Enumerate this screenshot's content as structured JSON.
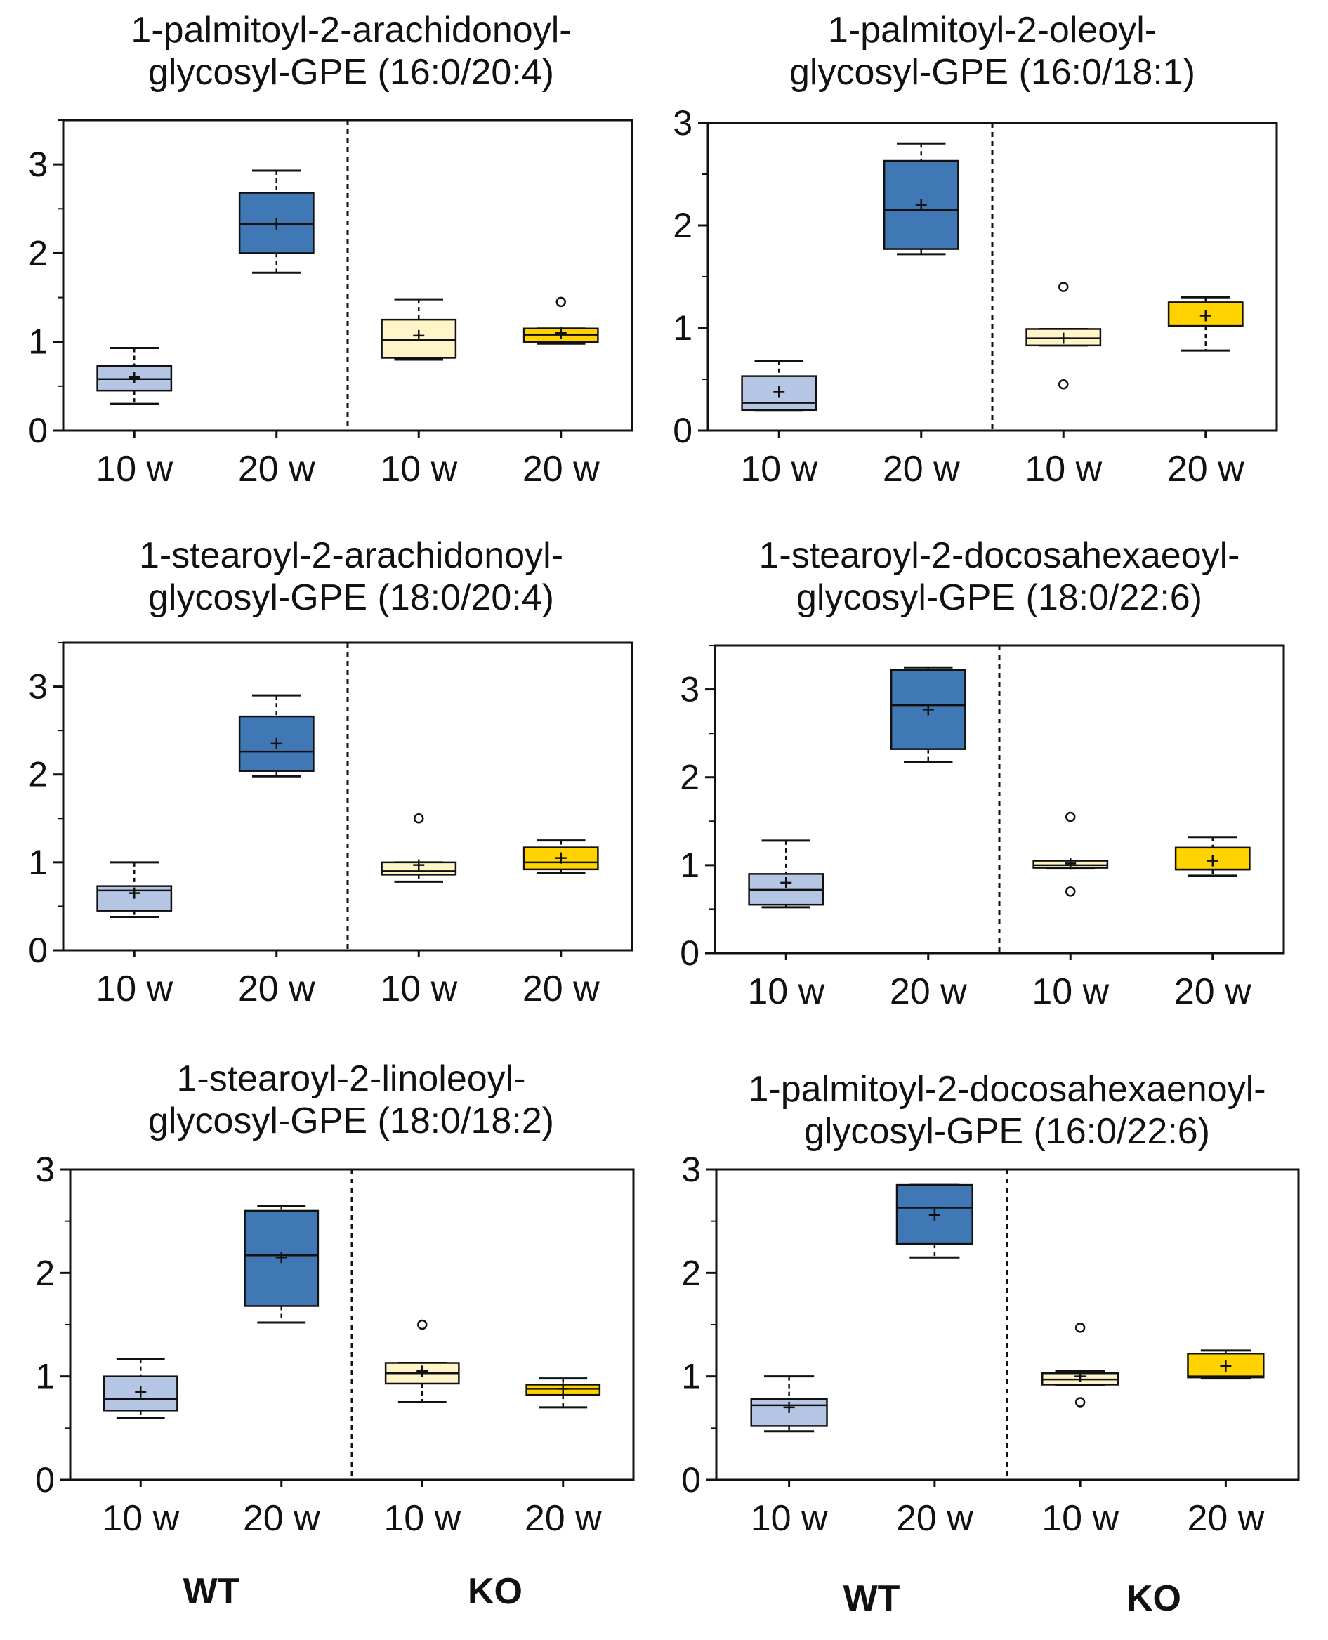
{
  "colors": {
    "wt_10w": "#b4c6e4",
    "wt_20w": "#3f78b4",
    "ko_10w": "#fff5c8",
    "ko_20w": "#ffd200"
  },
  "group_labels": {
    "wt": "WT",
    "ko": "KO"
  },
  "chart_data": [
    {
      "type": "box",
      "title_line1": "1-palmitoyl-2-arachidonoyl-",
      "title_line2": "glycosyl-GPE (16:0/20:4)",
      "categories": [
        "10 w",
        "20 w",
        "10 w",
        "20 w"
      ],
      "groups": [
        "WT",
        "WT",
        "KO",
        "KO"
      ],
      "ylim": [
        0,
        3.5
      ],
      "yticks": [
        0,
        1,
        2,
        3
      ],
      "minor_yticks": [
        0.5,
        1.5,
        2.5,
        3.5
      ],
      "boxes": [
        {
          "min": 0.3,
          "q1": 0.45,
          "median": 0.58,
          "q3": 0.73,
          "max": 0.93,
          "mean": 0.6,
          "outliers": []
        },
        {
          "min": 1.78,
          "q1": 2.0,
          "median": 2.33,
          "q3": 2.68,
          "max": 2.93,
          "mean": 2.33,
          "outliers": []
        },
        {
          "min": 0.8,
          "q1": 0.82,
          "median": 1.02,
          "q3": 1.25,
          "max": 1.48,
          "mean": 1.07,
          "outliers": []
        },
        {
          "min": 0.98,
          "q1": 1.0,
          "median": 1.08,
          "q3": 1.15,
          "max": 1.15,
          "mean": 1.1,
          "outliers": [
            1.45
          ]
        }
      ]
    },
    {
      "type": "box",
      "title_line1": "1-palmitoyl-2-oleoyl-",
      "title_line2": "glycosyl-GPE (16:0/18:1)",
      "categories": [
        "10 w",
        "20 w",
        "10 w",
        "20 w"
      ],
      "groups": [
        "WT",
        "WT",
        "KO",
        "KO"
      ],
      "ylim": [
        0,
        3
      ],
      "yticks": [
        0,
        1,
        2,
        3
      ],
      "minor_yticks": [
        0.5,
        1.5,
        2.5
      ],
      "boxes": [
        {
          "min": 0.2,
          "q1": 0.2,
          "median": 0.27,
          "q3": 0.53,
          "max": 0.68,
          "mean": 0.38,
          "outliers": []
        },
        {
          "min": 1.72,
          "q1": 1.77,
          "median": 2.15,
          "q3": 2.63,
          "max": 2.8,
          "mean": 2.2,
          "outliers": []
        },
        {
          "min": 0.83,
          "q1": 0.83,
          "median": 0.9,
          "q3": 0.99,
          "max": 0.99,
          "mean": 0.9,
          "outliers": [
            1.4,
            0.45
          ]
        },
        {
          "min": 0.78,
          "q1": 1.02,
          "median": 1.25,
          "q3": 1.25,
          "max": 1.3,
          "mean": 1.12,
          "outliers": []
        }
      ]
    },
    {
      "type": "box",
      "title_line1": "1-stearoyl-2-arachidonoyl-",
      "title_line2": "glycosyl-GPE (18:0/20:4)",
      "categories": [
        "10 w",
        "20 w",
        "10 w",
        "20 w"
      ],
      "groups": [
        "WT",
        "WT",
        "KO",
        "KO"
      ],
      "ylim": [
        0,
        3.5
      ],
      "yticks": [
        0,
        1,
        2,
        3
      ],
      "minor_yticks": [
        0.5,
        1.5,
        2.5,
        3.5
      ],
      "boxes": [
        {
          "min": 0.38,
          "q1": 0.45,
          "median": 0.68,
          "q3": 0.73,
          "max": 1.0,
          "mean": 0.65,
          "outliers": []
        },
        {
          "min": 1.98,
          "q1": 2.04,
          "median": 2.26,
          "q3": 2.66,
          "max": 2.9,
          "mean": 2.35,
          "outliers": []
        },
        {
          "min": 0.78,
          "q1": 0.86,
          "median": 0.9,
          "q3": 1.0,
          "max": 1.0,
          "mean": 0.97,
          "outliers": [
            1.5
          ]
        },
        {
          "min": 0.88,
          "q1": 0.92,
          "median": 1.0,
          "q3": 1.17,
          "max": 1.25,
          "mean": 1.05,
          "outliers": []
        }
      ]
    },
    {
      "type": "box",
      "title_line1": "1-stearoyl-2-docosahexaeoyl-",
      "title_line2": "glycosyl-GPE (18:0/22:6)",
      "categories": [
        "10 w",
        "20 w",
        "10 w",
        "20 w"
      ],
      "groups": [
        "WT",
        "WT",
        "KO",
        "KO"
      ],
      "ylim": [
        0,
        3.5
      ],
      "yticks": [
        0,
        1,
        2,
        3
      ],
      "minor_yticks": [
        0.5,
        1.5,
        2.5,
        3.5
      ],
      "boxes": [
        {
          "min": 0.52,
          "q1": 0.55,
          "median": 0.72,
          "q3": 0.9,
          "max": 1.28,
          "mean": 0.8,
          "outliers": []
        },
        {
          "min": 2.17,
          "q1": 2.32,
          "median": 2.82,
          "q3": 3.22,
          "max": 3.25,
          "mean": 2.77,
          "outliers": []
        },
        {
          "min": 0.97,
          "q1": 0.97,
          "median": 1.0,
          "q3": 1.05,
          "max": 1.05,
          "mean": 1.02,
          "outliers": [
            1.55,
            0.7
          ]
        },
        {
          "min": 0.88,
          "q1": 0.95,
          "median": 0.95,
          "q3": 1.2,
          "max": 1.32,
          "mean": 1.05,
          "outliers": []
        }
      ]
    },
    {
      "type": "box",
      "title_line1": "1-stearoyl-2-linoleoyl-",
      "title_line2": "glycosyl-GPE (18:0/18:2)",
      "categories": [
        "10 w",
        "20 w",
        "10 w",
        "20 w"
      ],
      "groups": [
        "WT",
        "WT",
        "KO",
        "KO"
      ],
      "ylim": [
        0,
        3
      ],
      "yticks": [
        0,
        1,
        2,
        3
      ],
      "minor_yticks": [
        0.5,
        1.5,
        2.5
      ],
      "boxes": [
        {
          "min": 0.6,
          "q1": 0.67,
          "median": 0.78,
          "q3": 1.0,
          "max": 1.17,
          "mean": 0.85,
          "outliers": []
        },
        {
          "min": 1.52,
          "q1": 1.68,
          "median": 2.17,
          "q3": 2.6,
          "max": 2.65,
          "mean": 2.15,
          "outliers": []
        },
        {
          "min": 0.75,
          "q1": 0.93,
          "median": 1.03,
          "q3": 1.13,
          "max": 1.13,
          "mean": 1.05,
          "outliers": [
            1.5
          ]
        },
        {
          "min": 0.7,
          "q1": 0.82,
          "median": 0.88,
          "q3": 0.92,
          "max": 0.98,
          "mean": 0.88,
          "outliers": []
        }
      ]
    },
    {
      "type": "box",
      "title_line1": "1-palmitoyl-2-docosahexaenoyl-",
      "title_line2": "glycosyl-GPE (16:0/22:6)",
      "categories": [
        "10 w",
        "20 w",
        "10 w",
        "20 w"
      ],
      "groups": [
        "WT",
        "WT",
        "KO",
        "KO"
      ],
      "ylim": [
        0,
        3
      ],
      "yticks": [
        0,
        1,
        2,
        3
      ],
      "minor_yticks": [
        0.5,
        1.5,
        2.5
      ],
      "boxes": [
        {
          "min": 0.47,
          "q1": 0.52,
          "median": 0.72,
          "q3": 0.78,
          "max": 1.0,
          "mean": 0.7,
          "outliers": []
        },
        {
          "min": 2.15,
          "q1": 2.28,
          "median": 2.63,
          "q3": 2.85,
          "max": 2.85,
          "mean": 2.56,
          "outliers": []
        },
        {
          "min": 0.92,
          "q1": 0.92,
          "median": 0.97,
          "q3": 1.03,
          "max": 1.05,
          "mean": 1.0,
          "outliers": [
            1.47,
            0.75
          ]
        },
        {
          "min": 0.98,
          "q1": 0.99,
          "median": 1.0,
          "q3": 1.22,
          "max": 1.25,
          "mean": 1.1,
          "outliers": []
        }
      ]
    }
  ]
}
